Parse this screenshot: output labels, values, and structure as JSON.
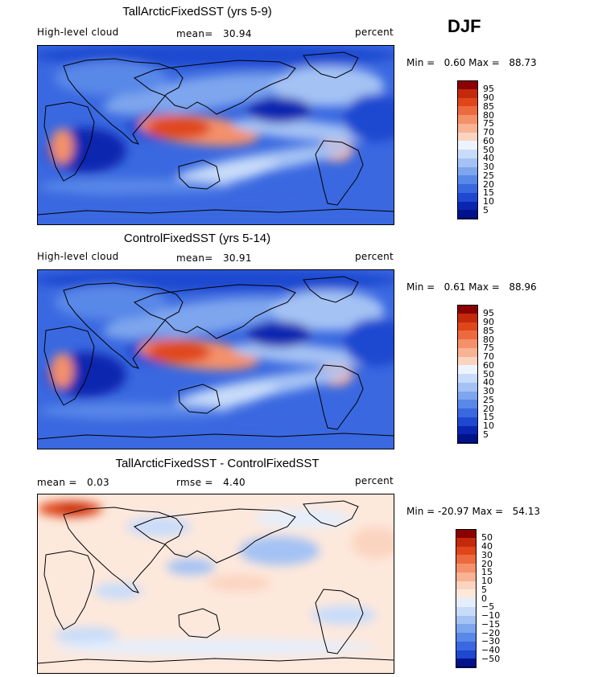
{
  "season": "DJF",
  "panels": [
    {
      "id": "p1",
      "title": "TallArcticFixedSST (yrs 5-9)",
      "variable": "High-level cloud",
      "stat1_label": "mean=",
      "stat1_value": "30.94",
      "units": "percent",
      "min_label": "Min =",
      "min_value": "0.60",
      "max_label": "Max =",
      "max_value": "88.73"
    },
    {
      "id": "p2",
      "title": "ControlFixedSST (yrs 5-14)",
      "variable": "High-level cloud",
      "stat1_label": "mean=",
      "stat1_value": "30.91",
      "units": "percent",
      "min_label": "Min =",
      "min_value": "0.61",
      "max_label": "Max =",
      "max_value": "88.96"
    },
    {
      "id": "p3",
      "title": "TallArcticFixedSST - ControlFixedSST",
      "stat0_label": "mean =",
      "stat0_value": "0.03",
      "stat1_label": "rmse =",
      "stat1_value": "4.40",
      "units": "percent",
      "min_label": "Min =",
      "min_value": "-20.97",
      "max_label": "Max =",
      "max_value": "54.13"
    }
  ],
  "chart_data": [
    {
      "type": "heatmap",
      "title": "TallArcticFixedSST (yrs 5-9)",
      "variable": "High-level cloud",
      "units": "percent",
      "mean": 30.94,
      "min": 0.6,
      "max": 88.73,
      "colorbar": {
        "ticks": [
          "95",
          "90",
          "85",
          "80",
          "75",
          "70",
          "60",
          "50",
          "40",
          "30",
          "25",
          "20",
          "15",
          "10",
          "5"
        ],
        "colors": [
          "#8b0000",
          "#c32a0c",
          "#e0461a",
          "#ec6a3e",
          "#f4906a",
          "#f8b294",
          "#fbd4c0",
          "#eef4ff",
          "#c8dcfa",
          "#a4c2f4",
          "#7ea6ee",
          "#5888e8",
          "#3a68e0",
          "#1f48d0",
          "#0a26b0",
          "#00128a"
        ]
      }
    },
    {
      "type": "heatmap",
      "title": "ControlFixedSST (yrs 5-14)",
      "variable": "High-level cloud",
      "units": "percent",
      "mean": 30.91,
      "min": 0.61,
      "max": 88.96,
      "colorbar": {
        "ticks": [
          "95",
          "90",
          "85",
          "80",
          "75",
          "70",
          "60",
          "50",
          "40",
          "30",
          "25",
          "20",
          "15",
          "10",
          "5"
        ],
        "colors": [
          "#8b0000",
          "#c32a0c",
          "#e0461a",
          "#ec6a3e",
          "#f4906a",
          "#f8b294",
          "#fbd4c0",
          "#eef4ff",
          "#c8dcfa",
          "#a4c2f4",
          "#7ea6ee",
          "#5888e8",
          "#3a68e0",
          "#1f48d0",
          "#0a26b0",
          "#00128a"
        ]
      }
    },
    {
      "type": "heatmap",
      "title": "TallArcticFixedSST - ControlFixedSST",
      "units": "percent",
      "mean": 0.03,
      "rmse": 4.4,
      "min": -20.97,
      "max": 54.13,
      "colorbar": {
        "ticks": [
          "50",
          "40",
          "30",
          "20",
          "15",
          "10",
          "5",
          "0",
          "−5",
          "−10",
          "−15",
          "−20",
          "−30",
          "−40",
          "−50"
        ],
        "colors": [
          "#8b0000",
          "#c32a0c",
          "#e0461a",
          "#ec6a3e",
          "#f4906a",
          "#f8b294",
          "#fbd4c0",
          "#fde8dc",
          "#e4eefc",
          "#c8dcfa",
          "#a4c2f4",
          "#7ea6ee",
          "#5888e8",
          "#3a68e0",
          "#1f48d0",
          "#00128a"
        ]
      }
    }
  ]
}
